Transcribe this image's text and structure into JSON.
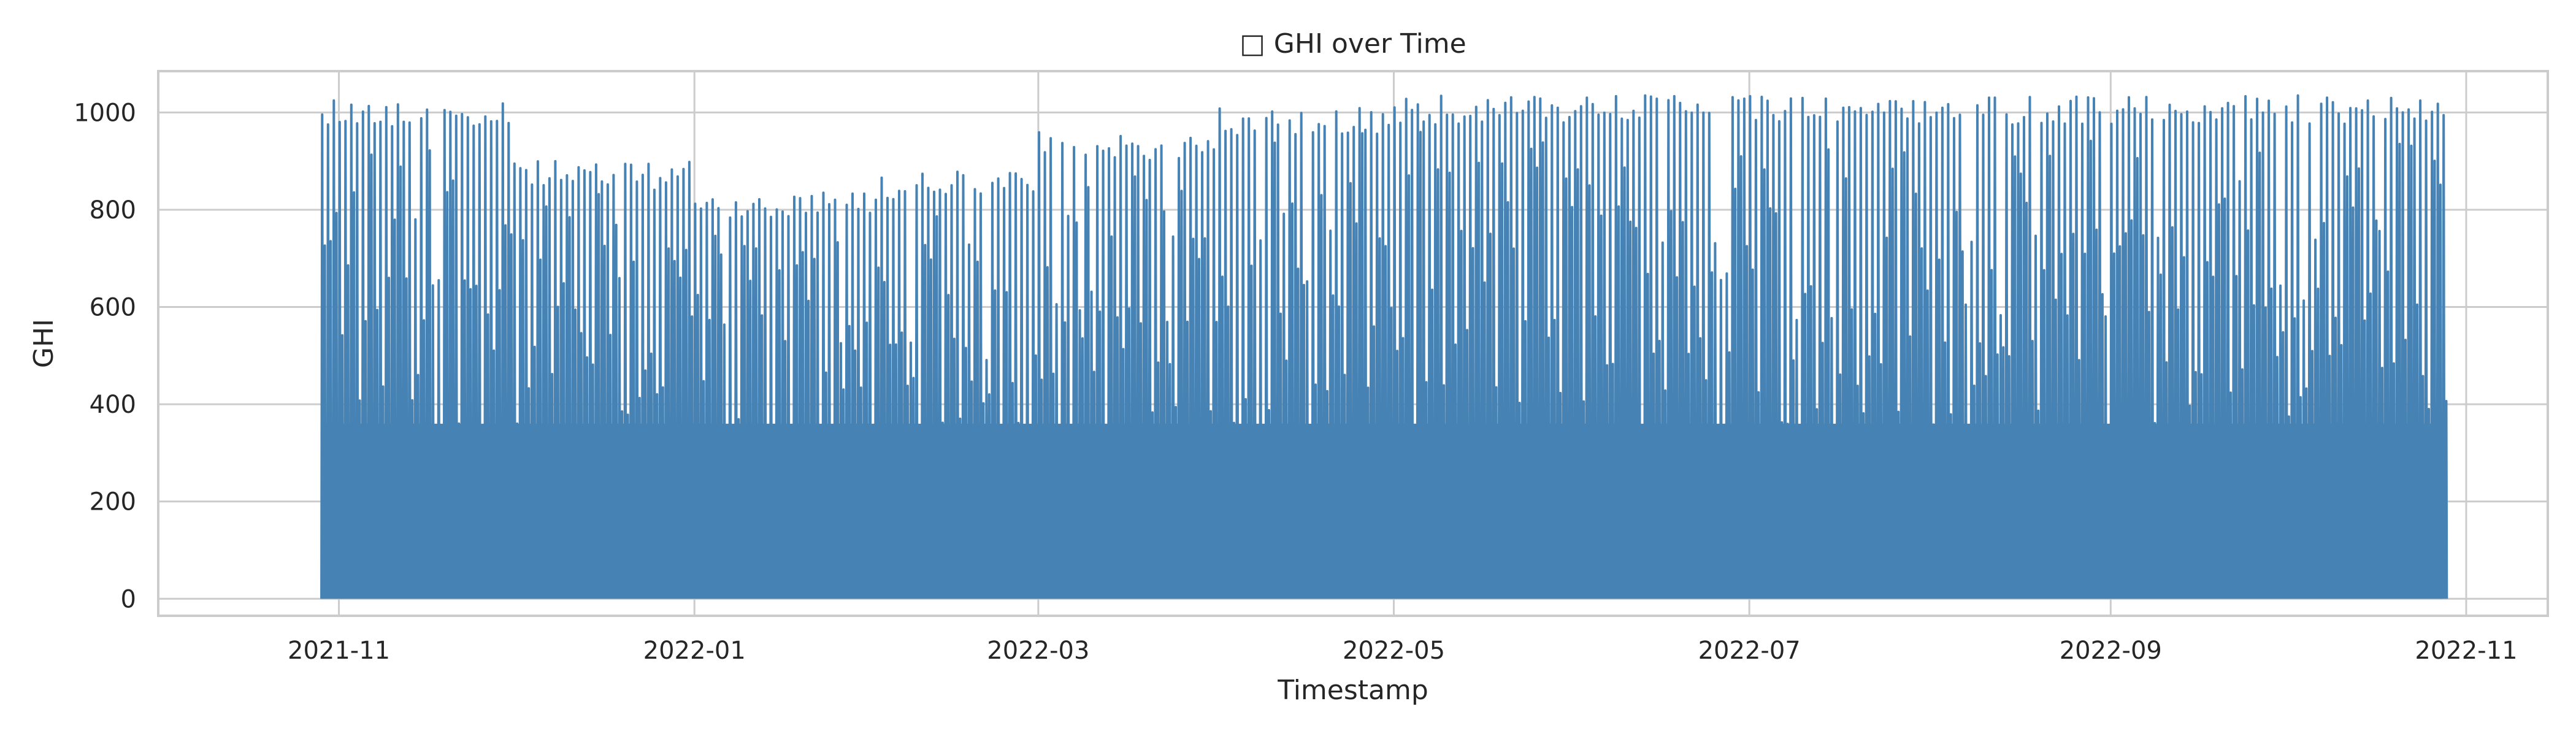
{
  "chart_data": {
    "type": "line",
    "title": "□ GHI over Time",
    "xlabel": "Timestamp",
    "ylabel": "GHI",
    "x_range": [
      "2021-10-01",
      "2022-11-15"
    ],
    "ylim": [
      -35,
      1085
    ],
    "x_ticks": [
      "2021-11",
      "2022-01",
      "2022-03",
      "2022-05",
      "2022-07",
      "2022-09",
      "2022-11"
    ],
    "y_ticks": [
      0,
      200,
      400,
      600,
      800,
      1000
    ],
    "grid": true,
    "legend": "none",
    "series_color": "#4682b4",
    "series": [
      {
        "x_start": "2021-10-29",
        "x_end": "2022-10-28",
        "resolution": "hourly",
        "daily_peak_ghi_by_month": [
          {
            "month": "2021-10",
            "peak": 1035
          },
          {
            "month": "2021-11",
            "peak": 1030
          },
          {
            "month": "2021-12",
            "peak": 900
          },
          {
            "month": "2022-01",
            "peak": 840
          },
          {
            "month": "2022-02",
            "peak": 880
          },
          {
            "month": "2022-03",
            "peak": 960
          },
          {
            "month": "2022-04",
            "peak": 1010
          },
          {
            "month": "2022-05",
            "peak": 1035
          },
          {
            "month": "2022-06",
            "peak": 1035
          },
          {
            "month": "2022-07",
            "peak": 1035
          },
          {
            "month": "2022-08",
            "peak": 1035
          },
          {
            "month": "2022-09",
            "peak": 1035
          },
          {
            "month": "2022-10",
            "peak": 1035
          }
        ],
        "min": 0,
        "max": 1035
      }
    ]
  }
}
